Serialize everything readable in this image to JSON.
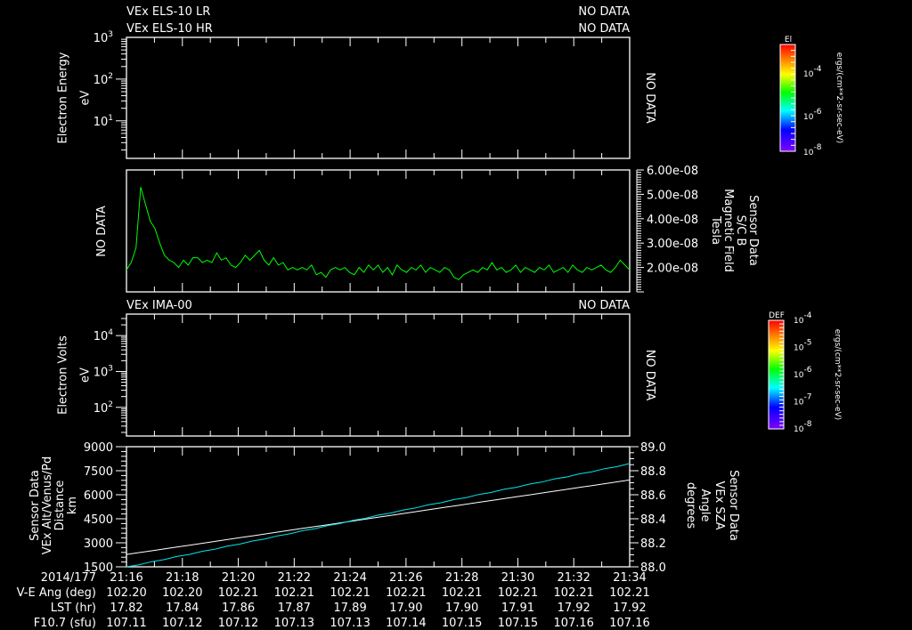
{
  "headers": {
    "els_lr": "VEx ELS-10 LR",
    "els_hr": "VEx ELS-10 HR",
    "ima": "VEx IMA-00",
    "no_data": "NO DATA"
  },
  "colors": {
    "white": "#ffffff",
    "green": "#00ff00",
    "cyan": "#00e5ee"
  },
  "chart_data": [
    {
      "id": "electron-energy",
      "type": "heatmap",
      "status": "NO DATA",
      "ylabel": [
        "Electron Energy",
        "eV"
      ],
      "yscale": "log",
      "ylim_exp": [
        0.1,
        3
      ],
      "yticks": [
        {
          "base": "10",
          "exp": "1",
          "v": 1
        },
        {
          "base": "10",
          "exp": "2",
          "v": 2
        },
        {
          "base": "10",
          "exp": "3",
          "v": 3
        }
      ],
      "colorbar": {
        "label": "El",
        "ticks": [
          {
            "base": "10",
            "exp": "-4"
          },
          {
            "base": "10",
            "exp": "-6"
          },
          {
            "base": "10",
            "exp": "-8"
          }
        ],
        "units": "ergs/(cm**2-sr-sec-eV)"
      }
    },
    {
      "id": "magnetic-field",
      "type": "line",
      "status_left": "NO DATA",
      "ylabel_right": [
        "Sensor Data",
        "S/C B",
        "Magnetic Field",
        "Tesla"
      ],
      "ylim": [
        1e-08,
        6e-08
      ],
      "yticks": [
        {
          "v": 2e-08,
          "label": "2.00e-08"
        },
        {
          "v": 3e-08,
          "label": "3.00e-08"
        },
        {
          "v": 4e-08,
          "label": "4.00e-08"
        },
        {
          "v": 5e-08,
          "label": "5.00e-08"
        },
        {
          "v": 6e-08,
          "label": "6.00e-08"
        }
      ],
      "value_scale": 1e-08,
      "x_range_min": [
        0,
        18
      ],
      "values": [
        1.9,
        2.2,
        2.8,
        5.3,
        4.6,
        3.9,
        3.6,
        3.0,
        2.5,
        2.3,
        2.2,
        2.0,
        2.3,
        2.1,
        2.4,
        2.4,
        2.2,
        2.3,
        2.2,
        2.6,
        2.3,
        2.4,
        2.1,
        2.0,
        2.2,
        2.5,
        2.3,
        2.5,
        2.7,
        2.3,
        2.1,
        2.4,
        2.1,
        2.2,
        1.9,
        2.0,
        1.9,
        2.0,
        1.9,
        2.1,
        1.7,
        1.8,
        1.6,
        1.9,
        2.0,
        1.9,
        2.0,
        1.8,
        1.7,
        2.0,
        1.8,
        2.1,
        1.9,
        2.1,
        1.8,
        2.0,
        1.7,
        2.1,
        1.9,
        1.8,
        2.0,
        1.9,
        2.1,
        1.8,
        2.0,
        1.9,
        1.8,
        2.0,
        1.9,
        1.6,
        1.5,
        1.7,
        1.8,
        1.9,
        1.8,
        2.0,
        1.9,
        2.2,
        1.9,
        2.0,
        1.8,
        1.9,
        2.1,
        1.8,
        2.0,
        1.9,
        1.8,
        2.0,
        1.9,
        2.1,
        1.8,
        1.9,
        2.0,
        1.8,
        2.1,
        1.9,
        1.8,
        2.0,
        1.9,
        2.0,
        2.1,
        1.9,
        1.8,
        2.0,
        2.3,
        2.1,
        1.9
      ]
    },
    {
      "id": "electron-volts",
      "type": "heatmap",
      "status": "NO DATA",
      "ylabel": [
        "Electron Volts",
        "eV"
      ],
      "yscale": "log",
      "ylim_exp": [
        1.2,
        4.6
      ],
      "yticks": [
        {
          "base": "10",
          "exp": "2",
          "v": 2
        },
        {
          "base": "10",
          "exp": "3",
          "v": 3
        },
        {
          "base": "10",
          "exp": "4",
          "v": 4
        }
      ],
      "colorbar": {
        "label": "DEF",
        "ticks": [
          {
            "base": "10",
            "exp": "-4"
          },
          {
            "base": "10",
            "exp": "-5"
          },
          {
            "base": "10",
            "exp": "-6"
          },
          {
            "base": "10",
            "exp": "-7"
          },
          {
            "base": "10",
            "exp": "-8"
          }
        ],
        "units": "ergs/(cm**2-sr-sec-eV)"
      }
    },
    {
      "id": "altitude-sza",
      "type": "line",
      "ylabel": [
        "Sensor Data",
        "VEx Alt/Venus/Pd",
        "Distance",
        "km"
      ],
      "ylabel_right": [
        "Sensor Data",
        "VEx SZA",
        "Angle",
        "degrees"
      ],
      "ylim": [
        1500,
        9000
      ],
      "yticks": [
        1500,
        3000,
        4500,
        6000,
        7500,
        9000
      ],
      "ylim_right": [
        88.0,
        89.0
      ],
      "yticks_right": [
        "88.0",
        "88.2",
        "88.4",
        "88.6",
        "88.8",
        "89.0"
      ],
      "series": [
        {
          "name": "VEx Alt/Venus/Pd Distance (km)",
          "axis": "left",
          "color": "#ffffff",
          "x_min": [
            0,
            18
          ],
          "y": [
            2270,
            6920
          ]
        },
        {
          "name": "VEx SZA Angle (degrees)",
          "axis": "right",
          "color": "#00e5ee",
          "x_min": [
            0,
            18
          ],
          "y": [
            88.0,
            88.86
          ]
        }
      ]
    }
  ],
  "time_axis": {
    "date": "2014/177",
    "ticks": [
      "21:16",
      "21:18",
      "21:20",
      "21:22",
      "21:24",
      "21:26",
      "21:28",
      "21:30",
      "21:32",
      "21:34"
    ],
    "rows": [
      {
        "label": "V-E Ang (deg)",
        "values": [
          "102.20",
          "102.20",
          "102.21",
          "102.21",
          "102.21",
          "102.21",
          "102.21",
          "102.21",
          "102.21",
          "102.21"
        ]
      },
      {
        "label": "LST (hr)",
        "values": [
          "17.82",
          "17.84",
          "17.86",
          "17.87",
          "17.89",
          "17.90",
          "17.90",
          "17.91",
          "17.92",
          "17.92"
        ]
      },
      {
        "label": "F10.7 (sfu)",
        "values": [
          "107.11",
          "107.12",
          "107.12",
          "107.13",
          "107.13",
          "107.14",
          "107.15",
          "107.15",
          "107.16",
          "107.16"
        ]
      }
    ]
  }
}
